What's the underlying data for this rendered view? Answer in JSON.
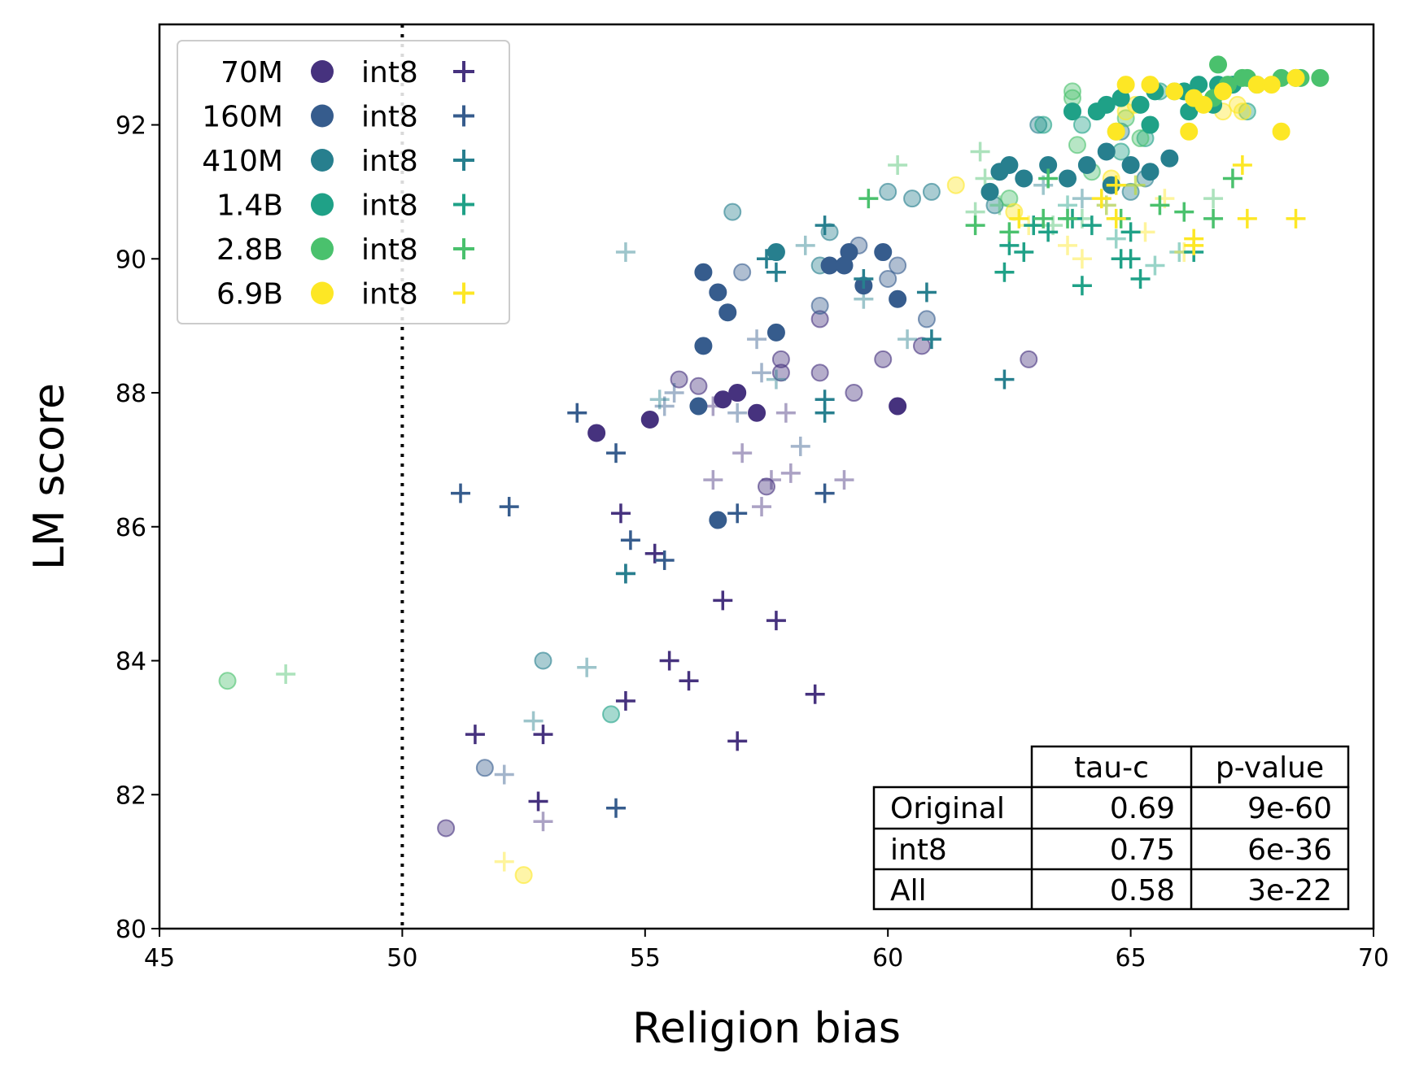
{
  "chart_data": {
    "type": "scatter",
    "xlabel": "Religion bias",
    "ylabel": "LM score",
    "xlim": [
      45,
      70
    ],
    "ylim": [
      80,
      93.5
    ],
    "xticks": [
      45,
      50,
      55,
      60,
      65,
      70
    ],
    "yticks": [
      80,
      82,
      84,
      86,
      88,
      90,
      92
    ],
    "reference_line": {
      "x": 50,
      "style": "dotted"
    },
    "legend": {
      "placement": "top-left",
      "entries": [
        {
          "size": "70M",
          "variant": "int8",
          "color": "#46327e"
        },
        {
          "size": "160M",
          "variant": "int8",
          "color": "#365c8d"
        },
        {
          "size": "410M",
          "variant": "int8",
          "color": "#277f8e"
        },
        {
          "size": "1.4B",
          "variant": "int8",
          "color": "#1fa187"
        },
        {
          "size": "2.8B",
          "variant": "int8",
          "color": "#4ac16d"
        },
        {
          "size": "6.9B",
          "variant": "int8",
          "color": "#fde725"
        }
      ]
    },
    "stats_table": {
      "placement": "bottom-right",
      "columns": [
        "tau-c",
        "p-value"
      ],
      "rows": [
        {
          "label": "Original",
          "tau_c": "0.69",
          "p_value": "9e-60"
        },
        {
          "label": "int8",
          "tau_c": "0.75",
          "p_value": "6e-36"
        },
        {
          "label": "All",
          "tau_c": "0.58",
          "p_value": "3e-22"
        }
      ]
    },
    "series": [
      {
        "name": "70M",
        "color": "#46327e",
        "original": [
          [
            54.0,
            87.4
          ],
          [
            55.1,
            87.6
          ],
          [
            56.6,
            87.9
          ],
          [
            56.9,
            88.0
          ],
          [
            57.3,
            87.7
          ],
          [
            60.2,
            87.8
          ]
        ],
        "original_faded": [
          [
            50.9,
            81.5
          ],
          [
            55.7,
            88.2
          ],
          [
            56.1,
            88.1
          ],
          [
            57.8,
            88.5
          ],
          [
            57.5,
            86.6
          ],
          [
            58.6,
            88.3
          ],
          [
            59.3,
            88.0
          ],
          [
            59.9,
            88.5
          ],
          [
            60.7,
            88.7
          ],
          [
            62.9,
            88.5
          ],
          [
            57.8,
            88.3
          ],
          [
            58.6,
            89.1
          ]
        ],
        "int8": [
          [
            51.5,
            82.9
          ],
          [
            52.9,
            82.9
          ],
          [
            52.8,
            81.9
          ],
          [
            54.6,
            83.4
          ],
          [
            55.5,
            84.0
          ],
          [
            55.9,
            83.7
          ],
          [
            56.9,
            82.8
          ],
          [
            58.5,
            83.5
          ],
          [
            56.6,
            84.9
          ],
          [
            57.7,
            84.6
          ],
          [
            54.5,
            86.2
          ],
          [
            55.2,
            85.6
          ]
        ],
        "int8_faded": [
          [
            52.9,
            81.6
          ],
          [
            56.4,
            86.7
          ],
          [
            57.0,
            87.1
          ],
          [
            57.4,
            86.3
          ],
          [
            57.6,
            86.7
          ],
          [
            58.0,
            86.8
          ],
          [
            57.9,
            87.7
          ],
          [
            59.1,
            86.7
          ],
          [
            56.4,
            87.8
          ]
        ]
      },
      {
        "name": "160M",
        "color": "#365c8d",
        "original": [
          [
            56.2,
            89.8
          ],
          [
            56.5,
            89.5
          ],
          [
            56.7,
            89.2
          ],
          [
            56.2,
            88.7
          ],
          [
            57.7,
            88.9
          ],
          [
            58.8,
            89.9
          ],
          [
            59.2,
            90.1
          ],
          [
            59.5,
            89.6
          ],
          [
            59.9,
            90.1
          ],
          [
            60.2,
            89.4
          ],
          [
            56.5,
            86.1
          ],
          [
            56.1,
            87.8
          ],
          [
            59.1,
            89.9
          ]
        ],
        "original_faded": [
          [
            51.7,
            82.4
          ],
          [
            57.0,
            89.8
          ],
          [
            59.4,
            90.2
          ],
          [
            60.0,
            89.7
          ],
          [
            60.2,
            89.9
          ],
          [
            60.8,
            89.1
          ],
          [
            58.6,
            89.3
          ]
        ],
        "int8": [
          [
            51.2,
            86.5
          ],
          [
            52.2,
            86.3
          ],
          [
            54.7,
            85.8
          ],
          [
            54.6,
            85.3
          ],
          [
            55.4,
            85.5
          ],
          [
            54.4,
            81.8
          ],
          [
            53.6,
            87.7
          ],
          [
            54.4,
            87.1
          ],
          [
            56.9,
            86.2
          ],
          [
            58.7,
            86.5
          ]
        ],
        "int8_faded": [
          [
            52.1,
            82.3
          ],
          [
            55.4,
            87.8
          ],
          [
            55.6,
            88.0
          ],
          [
            56.9,
            87.7
          ],
          [
            57.3,
            88.8
          ],
          [
            57.4,
            88.3
          ],
          [
            58.2,
            87.2
          ]
        ]
      },
      {
        "name": "410M",
        "color": "#277f8e",
        "original": [
          [
            63.3,
            91.4
          ],
          [
            63.7,
            91.2
          ],
          [
            64.1,
            91.4
          ],
          [
            64.5,
            91.6
          ],
          [
            64.6,
            91.1
          ],
          [
            65.0,
            91.4
          ],
          [
            65.4,
            91.3
          ],
          [
            65.8,
            91.5
          ],
          [
            62.3,
            91.3
          ],
          [
            62.5,
            91.4
          ],
          [
            62.8,
            91.2
          ],
          [
            57.7,
            90.1
          ],
          [
            62.1,
            91.0
          ]
        ],
        "original_faded": [
          [
            52.9,
            84.0
          ],
          [
            58.6,
            89.9
          ],
          [
            58.8,
            90.4
          ],
          [
            60.0,
            91.0
          ],
          [
            60.5,
            90.9
          ],
          [
            60.9,
            91.0
          ],
          [
            63.1,
            92.0
          ],
          [
            64.8,
            91.9
          ],
          [
            65.0,
            91.0
          ],
          [
            65.3,
            91.2
          ],
          [
            56.8,
            90.7
          ],
          [
            62.2,
            90.8
          ]
        ],
        "int8": [
          [
            54.6,
            85.3
          ],
          [
            57.7,
            89.8
          ],
          [
            58.7,
            90.5
          ],
          [
            59.5,
            89.7
          ],
          [
            60.8,
            89.5
          ],
          [
            62.4,
            88.2
          ],
          [
            58.7,
            87.9
          ],
          [
            57.5,
            90.0
          ],
          [
            58.7,
            87.7
          ],
          [
            60.9,
            88.8
          ]
        ],
        "int8_faded": [
          [
            53.8,
            83.9
          ],
          [
            52.7,
            83.1
          ],
          [
            55.3,
            87.9
          ],
          [
            57.7,
            88.2
          ],
          [
            58.3,
            90.2
          ],
          [
            59.5,
            89.4
          ],
          [
            60.4,
            88.8
          ],
          [
            54.6,
            90.1
          ],
          [
            63.2,
            91.1
          ],
          [
            64.0,
            90.9
          ]
        ]
      },
      {
        "name": "1.4B",
        "color": "#1fa187",
        "original": [
          [
            64.3,
            92.2
          ],
          [
            64.8,
            92.4
          ],
          [
            65.2,
            92.3
          ],
          [
            65.5,
            92.5
          ],
          [
            66.1,
            92.5
          ],
          [
            66.4,
            92.6
          ],
          [
            66.8,
            92.6
          ],
          [
            67.1,
            92.6
          ],
          [
            66.2,
            92.2
          ],
          [
            65.4,
            92.0
          ],
          [
            63.8,
            92.2
          ],
          [
            64.5,
            92.3
          ],
          [
            66.7,
            92.3
          ]
        ],
        "original_faded": [
          [
            54.3,
            83.2
          ],
          [
            63.2,
            92.0
          ],
          [
            64.0,
            92.0
          ],
          [
            64.8,
            91.6
          ],
          [
            65.3,
            91.8
          ],
          [
            65.6,
            92.5
          ],
          [
            67.4,
            92.2
          ],
          [
            65.9,
            92.5
          ]
        ],
        "int8": [
          [
            62.4,
            89.8
          ],
          [
            62.8,
            90.1
          ],
          [
            63.3,
            90.4
          ],
          [
            63.8,
            90.6
          ],
          [
            64.2,
            90.5
          ],
          [
            64.8,
            90.0
          ],
          [
            65.0,
            90.0
          ],
          [
            65.2,
            89.7
          ],
          [
            64.0,
            89.6
          ],
          [
            62.5,
            90.2
          ],
          [
            65.0,
            90.4
          ],
          [
            66.3,
            90.1
          ],
          [
            63.0,
            90.5
          ]
        ],
        "int8_faded": [
          [
            64.7,
            90.3
          ],
          [
            65.5,
            89.9
          ],
          [
            66.0,
            90.1
          ],
          [
            64.5,
            90.8
          ],
          [
            63.7,
            90.8
          ]
        ]
      },
      {
        "name": "2.8B",
        "color": "#4ac16d",
        "original": [
          [
            66.8,
            92.9
          ],
          [
            67.3,
            92.7
          ],
          [
            67.6,
            92.6
          ],
          [
            68.1,
            92.7
          ],
          [
            68.9,
            92.7
          ],
          [
            68.4,
            92.7
          ],
          [
            66.7,
            92.4
          ],
          [
            67.0,
            92.6
          ],
          [
            68.5,
            92.7
          ],
          [
            67.4,
            92.7
          ]
        ],
        "original_faded": [
          [
            46.4,
            83.7
          ],
          [
            63.8,
            92.5
          ],
          [
            63.9,
            91.7
          ],
          [
            64.2,
            91.3
          ],
          [
            64.7,
            91.9
          ],
          [
            64.9,
            92.1
          ],
          [
            63.8,
            92.4
          ],
          [
            65.2,
            91.8
          ],
          [
            62.1,
            91.0
          ],
          [
            62.5,
            90.9
          ]
        ],
        "int8": [
          [
            59.6,
            90.9
          ],
          [
            61.8,
            90.5
          ],
          [
            62.5,
            90.4
          ],
          [
            63.2,
            90.6
          ],
          [
            63.7,
            90.6
          ],
          [
            64.8,
            90.6
          ],
          [
            65.6,
            90.8
          ],
          [
            66.1,
            90.7
          ],
          [
            67.1,
            91.2
          ],
          [
            66.7,
            90.6
          ],
          [
            63.3,
            91.2
          ]
        ],
        "int8_faded": [
          [
            47.6,
            83.8
          ],
          [
            60.2,
            91.4
          ],
          [
            61.9,
            91.6
          ],
          [
            62.0,
            91.2
          ],
          [
            62.3,
            90.8
          ],
          [
            63.4,
            90.5
          ],
          [
            64.0,
            90.6
          ],
          [
            65.1,
            91.1
          ],
          [
            66.7,
            90.9
          ],
          [
            61.8,
            90.7
          ]
        ]
      },
      {
        "name": "6.9B",
        "color": "#fde725",
        "original": [
          [
            64.9,
            92.6
          ],
          [
            65.4,
            92.6
          ],
          [
            65.9,
            92.5
          ],
          [
            66.3,
            92.4
          ],
          [
            66.5,
            92.3
          ],
          [
            66.9,
            92.5
          ],
          [
            67.6,
            92.6
          ],
          [
            67.9,
            92.6
          ],
          [
            68.4,
            92.7
          ],
          [
            64.7,
            91.9
          ],
          [
            66.2,
            91.9
          ],
          [
            68.1,
            91.9
          ]
        ],
        "original_faded": [
          [
            52.5,
            80.8
          ],
          [
            61.4,
            91.1
          ],
          [
            62.6,
            90.7
          ],
          [
            64.9,
            92.2
          ],
          [
            65.1,
            92.3
          ],
          [
            64.6,
            91.2
          ],
          [
            67.3,
            92.2
          ],
          [
            66.9,
            92.2
          ],
          [
            67.2,
            92.3
          ]
        ],
        "int8": [
          [
            62.7,
            90.6
          ],
          [
            64.4,
            90.9
          ],
          [
            64.7,
            91.1
          ],
          [
            66.3,
            90.3
          ],
          [
            66.3,
            90.2
          ],
          [
            67.4,
            90.6
          ],
          [
            68.4,
            90.6
          ],
          [
            64.7,
            90.6
          ],
          [
            67.3,
            91.4
          ]
        ],
        "int8_faded": [
          [
            52.1,
            81.0
          ],
          [
            63.7,
            90.2
          ],
          [
            64.0,
            90.0
          ],
          [
            64.5,
            90.8
          ],
          [
            65.1,
            91.1
          ],
          [
            65.3,
            90.4
          ],
          [
            66.1,
            90.1
          ],
          [
            62.9,
            90.5
          ],
          [
            65.7,
            90.9
          ]
        ]
      }
    ]
  }
}
